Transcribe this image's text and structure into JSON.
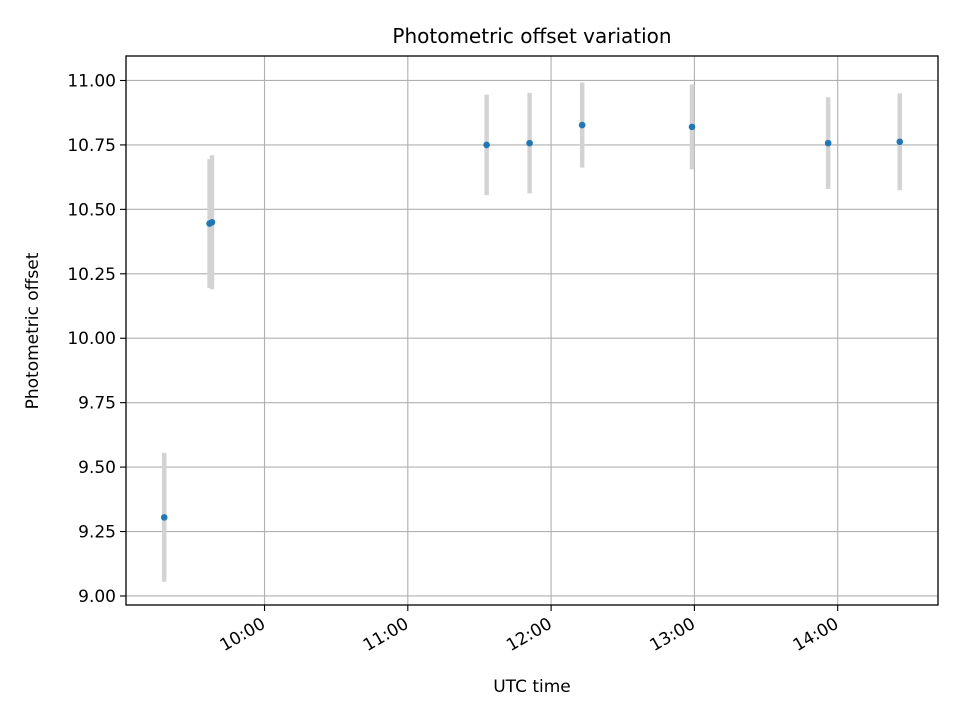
{
  "chart_data": {
    "type": "scatter",
    "title": "Photometric offset variation",
    "xlabel": "UTC time",
    "ylabel": "Photometric offset",
    "x_ticks": [
      "10:00",
      "11:00",
      "12:00",
      "13:00",
      "14:00"
    ],
    "y_ticks": [
      "9.00",
      "9.25",
      "9.50",
      "9.75",
      "10.00",
      "10.25",
      "10.50",
      "10.75",
      "11.00"
    ],
    "xlim": [
      "09:02",
      "14:42"
    ],
    "ylim": [
      8.965,
      11.095
    ],
    "grid": true,
    "marker_color": "#1f77b4",
    "errorbar_color": "#d3d3d3",
    "points": [
      {
        "x": "09:18",
        "y": 9.305,
        "yerr": 0.25
      },
      {
        "x": "09:37",
        "y": 10.445,
        "yerr": 0.25
      },
      {
        "x": "09:38",
        "y": 10.45,
        "yerr": 0.26
      },
      {
        "x": "11:33",
        "y": 10.75,
        "yerr": 0.195
      },
      {
        "x": "11:51",
        "y": 10.757,
        "yerr": 0.195
      },
      {
        "x": "12:13",
        "y": 10.827,
        "yerr": 0.165
      },
      {
        "x": "12:59",
        "y": 10.82,
        "yerr": 0.165
      },
      {
        "x": "13:56",
        "y": 10.757,
        "yerr": 0.178
      },
      {
        "x": "14:26",
        "y": 10.762,
        "yerr": 0.188
      }
    ]
  }
}
